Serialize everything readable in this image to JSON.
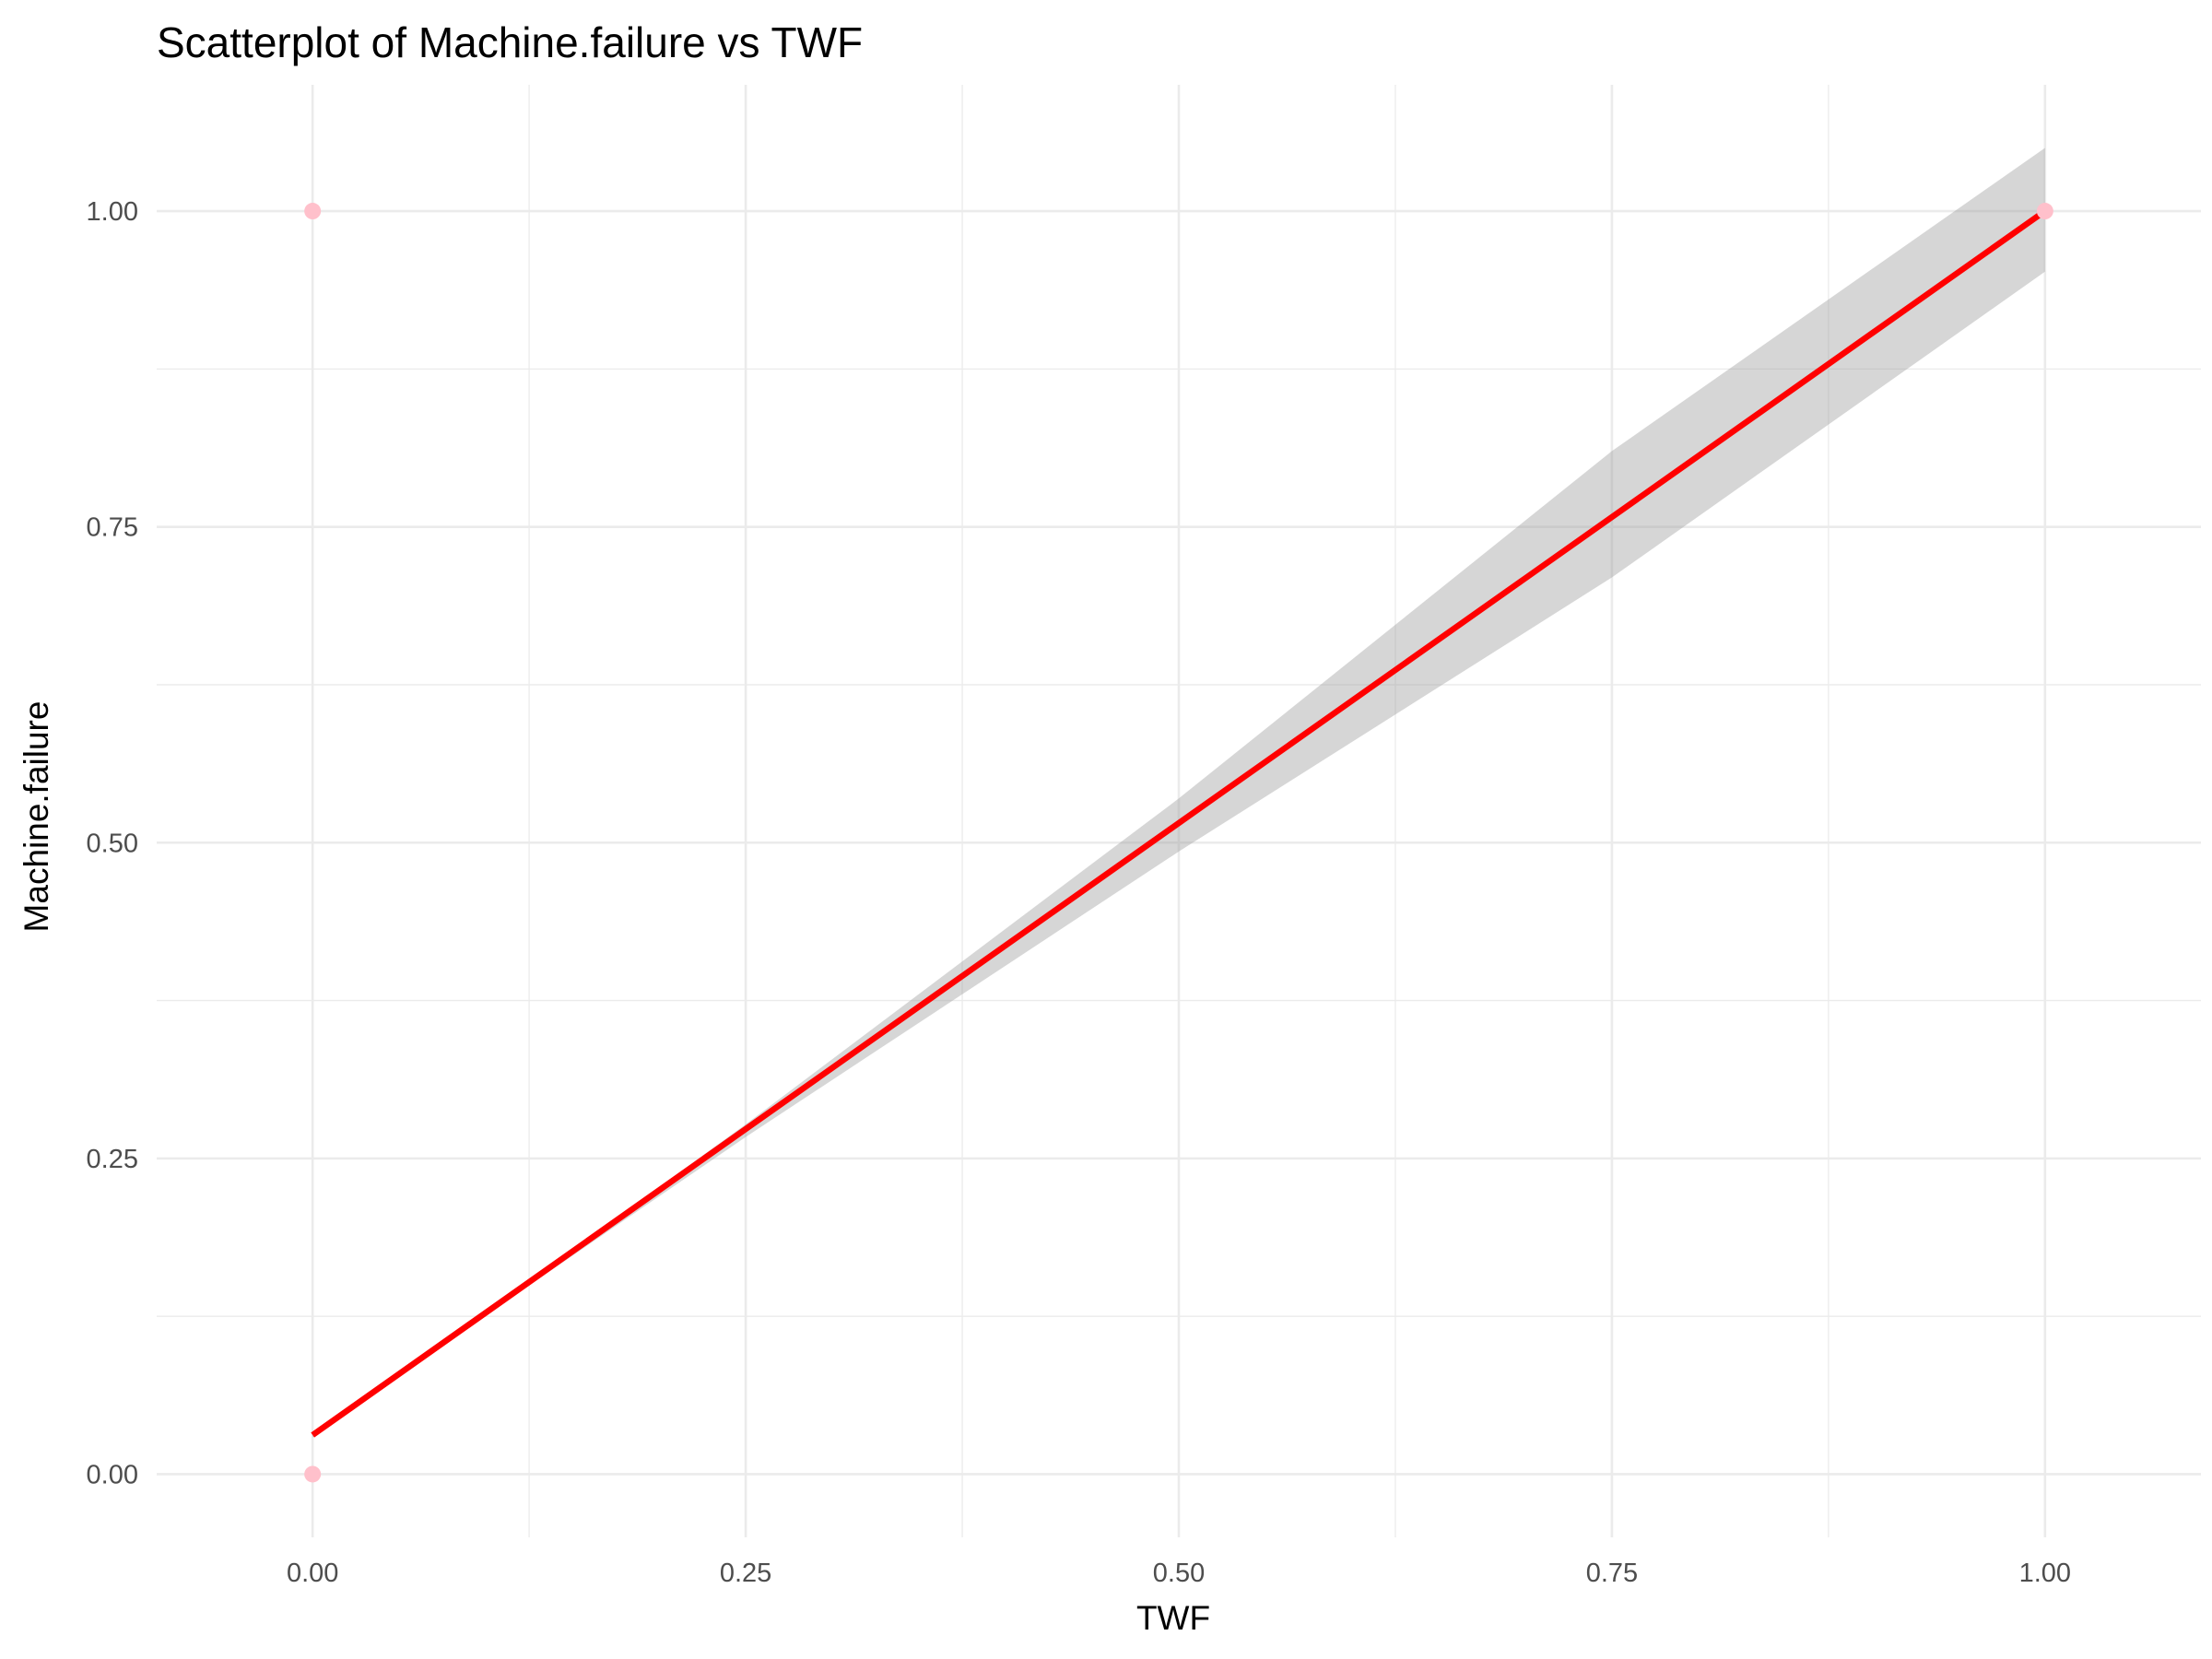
{
  "chart_data": {
    "type": "scatter",
    "title": "Scatterplot of Machine.failure vs TWF",
    "xlabel": "TWF",
    "ylabel": "Machine.failure",
    "xlim": [
      -0.09,
      1.09
    ],
    "ylim": [
      -0.05,
      1.1
    ],
    "x_ticks": [
      0,
      0.25,
      0.5,
      0.75,
      1
    ],
    "x_tick_labels": [
      "0.00",
      "0.25",
      "0.50",
      "0.75",
      "1.00"
    ],
    "y_ticks": [
      0,
      0.25,
      0.5,
      0.75,
      1
    ],
    "y_tick_labels": [
      "0.00",
      "0.25",
      "0.50",
      "0.75",
      "1.00"
    ],
    "grid": true,
    "points": [
      {
        "x": 0,
        "y": 1
      },
      {
        "x": 0,
        "y": 0
      },
      {
        "x": 1,
        "y": 1
      }
    ],
    "fit_line": {
      "method": "linear",
      "x": [
        0,
        1
      ],
      "y": [
        0.031,
        1.0
      ]
    },
    "confidence_band": {
      "x": [
        0,
        0.1,
        0.25,
        0.5,
        0.75,
        1
      ],
      "lower": [
        0.029,
        0.126,
        0.267,
        0.493,
        0.71,
        0.952
      ],
      "upper": [
        0.033,
        0.128,
        0.277,
        0.535,
        0.81,
        1.05
      ]
    },
    "colors": {
      "points": "#ffc0cb",
      "fit_line": "#ff0000",
      "band": "#999999"
    }
  }
}
